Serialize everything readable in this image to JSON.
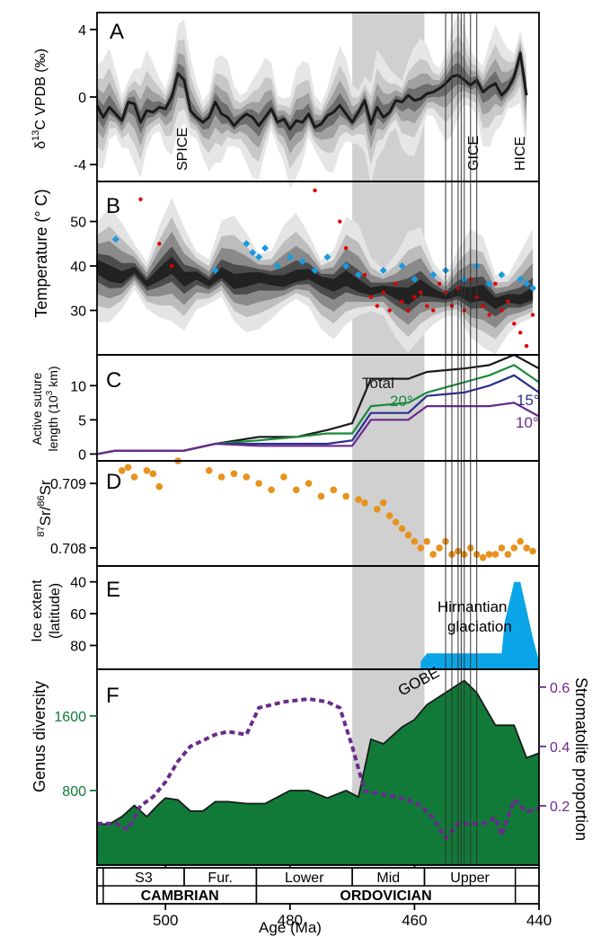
{
  "x_axis": {
    "label": "Age (Ma)",
    "range": [
      511,
      440
    ],
    "ticks": [
      500,
      480,
      460,
      440
    ]
  },
  "highlight_band": {
    "from": 470,
    "to": 458.4,
    "color": "#d0d0d0"
  },
  "gice_lines": [
    455,
    454,
    453,
    452.5,
    452,
    451,
    450
  ],
  "colors": {
    "black": "#1a1a1a",
    "red": "#e00000",
    "blue": "#1a9ae0",
    "orange": "#e8921e",
    "green_total": "#1b8a3c",
    "navy": "#2b2f8f",
    "purple": "#6a2a8c",
    "fill_green": "#117a38",
    "ice_blue": "#0aa5e6"
  },
  "panels": {
    "A": {
      "letter": "A",
      "ylabel_pre": "δ",
      "ylabel_sup": "13",
      "ylabel_post": "C VPDB (‰)",
      "annotations": [
        "SPICE",
        "GICE",
        "HICE"
      ]
    },
    "B": {
      "letter": "B",
      "ylabel": "Temperature (° C)"
    },
    "C": {
      "letter": "C",
      "ylabel_line1": "Active suture",
      "ylabel_line2_pre": "length (10",
      "ylabel_line2_sup": "3",
      "ylabel_line2_post": " km)",
      "labels": [
        "Total",
        "20°",
        "15°",
        "10°"
      ]
    },
    "D": {
      "letter": "D",
      "ylabel_sup1": "87",
      "ylabel_mid": "Sr/",
      "ylabel_sup2": "86",
      "ylabel_post": "Sr"
    },
    "E": {
      "letter": "E",
      "ylabel_line1": "Ice extent",
      "ylabel_line2": "(latitude)",
      "label_line1": "Hirnantian",
      "label_line2": "glaciation"
    },
    "F": {
      "letter": "F",
      "ylabel_left": "Genus diversity",
      "ylabel_right": "Stromatolite proportion",
      "annotation": "GOBE"
    }
  },
  "stratigraphy": {
    "epochs": [
      {
        "label": "S3",
        "from": 510,
        "to": 497
      },
      {
        "label": "Fur.",
        "from": 497,
        "to": 485.4
      },
      {
        "label": "Lower",
        "from": 485.4,
        "to": 470
      },
      {
        "label": "Mid",
        "from": 470,
        "to": 458.4
      },
      {
        "label": "Upper",
        "from": 458.4,
        "to": 443.8
      }
    ],
    "periods": [
      {
        "label": "CAMBRIAN",
        "from": 510,
        "to": 485.4
      },
      {
        "label": "ORDOVICIAN",
        "from": 485.4,
        "to": 443.8
      }
    ]
  },
  "chart_data": [
    {
      "type": "line",
      "panel": "A",
      "ylabel": "δ13C VPDB (‰)",
      "ylim": [
        -5,
        5
      ],
      "yticks": [
        4,
        0,
        -4
      ],
      "annotations": [
        "SPICE",
        "GICE",
        "HICE"
      ],
      "series": [
        {
          "x": [
            511,
            510,
            509,
            508,
            507,
            506,
            505,
            504,
            503,
            502,
            501,
            500,
            499,
            498,
            497,
            496,
            495,
            494,
            493,
            492,
            491,
            490,
            489,
            488,
            487,
            486,
            485,
            484,
            483,
            482,
            481,
            480,
            479,
            478,
            477,
            476,
            475,
            474,
            473,
            472,
            471,
            470,
            469,
            468,
            467,
            466,
            465,
            464,
            463,
            462,
            461,
            460,
            459,
            458,
            457,
            456,
            455,
            454,
            453,
            452,
            451,
            450,
            449,
            448,
            447,
            446,
            445,
            444,
            443,
            442
          ],
          "y": [
            -0.5,
            -1.2,
            -0.6,
            -1.0,
            -1.4,
            -0.3,
            -0.4,
            -1.5,
            -0.8,
            -0.9,
            -0.6,
            -0.7,
            0.0,
            1.4,
            1.0,
            -0.8,
            -1.2,
            -1.5,
            -1.2,
            -0.3,
            -1.0,
            -1.2,
            -1.7,
            -1.3,
            -1.0,
            -1.2,
            -1.7,
            -1.2,
            -0.7,
            -1.5,
            -1.3,
            -1.9,
            -1.4,
            -1.5,
            -1.0,
            -1.8,
            -1.6,
            -1.1,
            -0.9,
            -0.5,
            -1.0,
            -1.5,
            -0.9,
            -0.2,
            -1.6,
            -0.6,
            -1.2,
            -0.9,
            -0.2,
            -0.3,
            0.1,
            -0.2,
            -0.1,
            0.2,
            0.3,
            0.5,
            0.8,
            1.2,
            1.3,
            1.0,
            0.7,
            1.0,
            0.3,
            0.6,
            0.8,
            0.1,
            0.5,
            1.2,
            2.6,
            0.1
          ]
        }
      ]
    },
    {
      "type": "scatter",
      "panel": "B",
      "ylabel": "Temperature (° C)",
      "ylim": [
        20,
        59
      ],
      "yticks": [
        50,
        40,
        30
      ],
      "series": [
        {
          "name": "model median",
          "x": [
            511,
            509,
            507,
            505,
            503,
            501,
            499,
            497,
            495,
            493,
            491,
            489,
            487,
            485,
            483,
            481,
            479,
            477,
            475,
            473,
            471,
            469,
            467,
            465,
            463,
            461,
            459,
            457,
            455,
            453,
            451,
            449,
            447,
            445,
            443,
            441
          ],
          "y": [
            40,
            38,
            37,
            39,
            36,
            38,
            40,
            37,
            38,
            36,
            38,
            36,
            37,
            38,
            37,
            36,
            37,
            38,
            37,
            36,
            37,
            35,
            34,
            35,
            34,
            33,
            35,
            34,
            33,
            34,
            33,
            34,
            32,
            33,
            32,
            33
          ]
        },
        {
          "name": "red",
          "x": [
            504,
            501,
            499,
            476,
            472,
            471,
            468,
            467,
            466,
            465,
            464,
            463,
            462,
            461,
            460,
            459,
            458,
            457,
            456,
            455,
            454,
            453,
            452,
            451,
            450,
            449,
            448,
            447,
            446,
            445,
            444,
            443,
            442,
            441
          ],
          "y": [
            55,
            45,
            40,
            57,
            50,
            44,
            38,
            33,
            31,
            34,
            30,
            36,
            32,
            30,
            33,
            34,
            31,
            30,
            36,
            34,
            31,
            35,
            30,
            37,
            33,
            31,
            29,
            36,
            30,
            32,
            27,
            25,
            22,
            29
          ]
        },
        {
          "name": "blue",
          "x": [
            508,
            492,
            487,
            486,
            485,
            484,
            482,
            480,
            478,
            476,
            474,
            471,
            469,
            465,
            462,
            460,
            457,
            455,
            452,
            450,
            448,
            446,
            443,
            442,
            441
          ],
          "y": [
            46,
            39,
            45,
            43,
            42,
            44,
            40,
            42,
            41,
            39,
            42,
            40,
            38,
            39,
            40,
            37,
            38,
            39,
            37,
            40,
            36,
            38,
            37,
            36,
            35
          ]
        }
      ]
    },
    {
      "type": "line",
      "panel": "C",
      "ylabel": "Active suture length (10^3 km)",
      "ylim": [
        -1,
        14.5
      ],
      "yticks": [
        10,
        5,
        0
      ],
      "series": [
        {
          "name": "Total",
          "x": [
            511,
            508,
            497,
            492,
            485,
            479,
            474,
            470,
            467,
            461,
            458,
            452,
            448,
            444,
            440
          ],
          "y": [
            0,
            0.5,
            0.5,
            1.5,
            2.5,
            2.5,
            3.5,
            4.5,
            11,
            11,
            12,
            12.5,
            13,
            14.5,
            12.5
          ]
        },
        {
          "name": "20°",
          "x": [
            511,
            508,
            497,
            492,
            485,
            479,
            474,
            470,
            467,
            461,
            458,
            452,
            448,
            444,
            440
          ],
          "y": [
            0,
            0.5,
            0.5,
            1.5,
            2.0,
            2.5,
            3.0,
            3.0,
            7,
            7.5,
            9,
            10.5,
            11.5,
            13,
            10.5
          ]
        },
        {
          "name": "15°",
          "x": [
            511,
            508,
            497,
            492,
            485,
            479,
            474,
            470,
            467,
            461,
            458,
            452,
            448,
            444,
            440
          ],
          "y": [
            0,
            0.5,
            0.5,
            1.5,
            1.5,
            1.5,
            1.5,
            2.0,
            6,
            6,
            8.5,
            9,
            10,
            11.5,
            9
          ]
        },
        {
          "name": "10°",
          "x": [
            511,
            508,
            497,
            492,
            485,
            479,
            474,
            470,
            467,
            461,
            458,
            452,
            448,
            444,
            440
          ],
          "y": [
            0,
            0.5,
            0.5,
            1.5,
            1.2,
            1.2,
            1.2,
            1.2,
            5,
            5,
            7,
            7,
            7,
            7.5,
            5.5
          ]
        }
      ]
    },
    {
      "type": "scatter",
      "panel": "D",
      "ylabel": "87Sr/86Sr",
      "ylim": [
        0.70772,
        0.70935
      ],
      "yticks": [
        0.709,
        0.708
      ],
      "series": [
        {
          "x": [
            507,
            506,
            505,
            503,
            502,
            501,
            498,
            493,
            491,
            489,
            487,
            485,
            483,
            481,
            479,
            477,
            475,
            473,
            471,
            469,
            468,
            466,
            465,
            464,
            463,
            462,
            461,
            460,
            459,
            458,
            457,
            456,
            455,
            454,
            453,
            452,
            451,
            450,
            449,
            448,
            447,
            446,
            445,
            444,
            443,
            442,
            441
          ],
          "y": [
            0.7092,
            0.70925,
            0.7091,
            0.7092,
            0.70915,
            0.70895,
            0.70935,
            0.7092,
            0.7091,
            0.70915,
            0.7091,
            0.709,
            0.7089,
            0.7091,
            0.7089,
            0.709,
            0.7088,
            0.7089,
            0.7088,
            0.70875,
            0.7087,
            0.7086,
            0.7087,
            0.7085,
            0.7084,
            0.7083,
            0.7082,
            0.7081,
            0.708,
            0.7081,
            0.7079,
            0.708,
            0.7081,
            0.7079,
            0.70795,
            0.7079,
            0.708,
            0.7079,
            0.70785,
            0.7079,
            0.7079,
            0.708,
            0.7079,
            0.708,
            0.7081,
            0.708,
            0.70795
          ]
        }
      ]
    },
    {
      "type": "area",
      "panel": "E",
      "ylabel": "Ice extent (latitude)",
      "ylim": [
        95,
        30
      ],
      "yticks": [
        40,
        60,
        80
      ],
      "series": [
        {
          "name": "Hirnantian glaciation",
          "x": [
            459,
            458,
            451,
            446,
            445.5,
            444,
            443,
            441,
            440
          ],
          "y": [
            90,
            85,
            85,
            85,
            65,
            40,
            40,
            75,
            90
          ]
        }
      ]
    },
    {
      "type": "area",
      "panel": "F",
      "ylabel": "Genus diversity",
      "y2label": "Stromatolite proportion",
      "ylim": [
        0,
        2100
      ],
      "yticks": [
        800,
        1600
      ],
      "y2lim": [
        0,
        0.66
      ],
      "y2ticks": [
        0.2,
        0.4,
        0.6
      ],
      "annotations": [
        "GOBE"
      ],
      "series": [
        {
          "name": "Genus diversity",
          "x": [
            511,
            509,
            507,
            505,
            503,
            501,
            500,
            498,
            496,
            494,
            492,
            490,
            487,
            484,
            480,
            477,
            474,
            471,
            469,
            467,
            465,
            462,
            460,
            458,
            455,
            452,
            450,
            447,
            444,
            442,
            440
          ],
          "y": [
            440,
            440,
            520,
            640,
            520,
            660,
            720,
            700,
            580,
            580,
            680,
            680,
            660,
            660,
            800,
            800,
            720,
            800,
            730,
            1350,
            1300,
            1480,
            1560,
            1720,
            1850,
            1980,
            1850,
            1500,
            1500,
            1150,
            1200
          ]
        },
        {
          "name": "Stromatolite proportion",
          "x": [
            511,
            508,
            506,
            504,
            502,
            500,
            498,
            496,
            494,
            492,
            490,
            487,
            485,
            481,
            477,
            474,
            472,
            470,
            468,
            463,
            461,
            459,
            457,
            455,
            453,
            451,
            449,
            447,
            446,
            444,
            442,
            440
          ],
          "y": [
            0.14,
            0.14,
            0.12,
            0.2,
            0.23,
            0.28,
            0.35,
            0.4,
            0.42,
            0.44,
            0.45,
            0.44,
            0.53,
            0.55,
            0.56,
            0.55,
            0.53,
            0.4,
            0.25,
            0.23,
            0.22,
            0.2,
            0.16,
            0.09,
            0.14,
            0.14,
            0.14,
            0.16,
            0.1,
            0.22,
            0.18,
            0.19
          ]
        }
      ]
    }
  ]
}
